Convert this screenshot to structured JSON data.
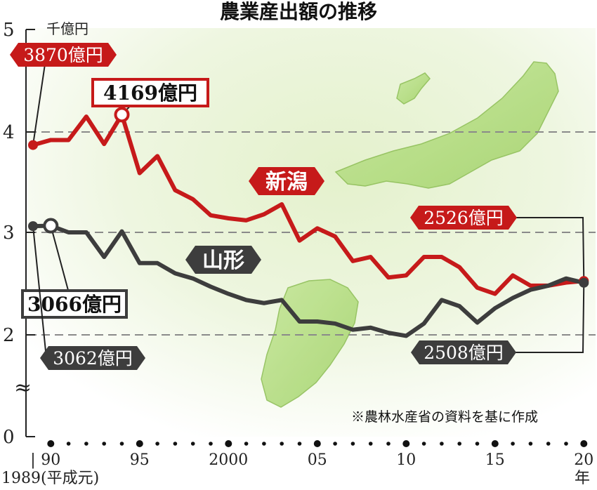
{
  "chart_data": {
    "type": "line",
    "title": "農業産出額の推移",
    "y_unit": "千億円",
    "x_unit": "年",
    "ylim": [
      0,
      5
    ],
    "y_ticks": [
      "0",
      "2",
      "3",
      "4",
      "5"
    ],
    "y_break_symbol": "≈",
    "x_ticks": [
      {
        "x": 1989,
        "label": "|"
      },
      {
        "x": 1990,
        "label": "90"
      },
      {
        "x": 1995,
        "label": "95"
      },
      {
        "x": 2000,
        "label": "2000"
      },
      {
        "x": 2005,
        "label": "05"
      },
      {
        "x": 2010,
        "label": "10"
      },
      {
        "x": 2015,
        "label": "15"
      },
      {
        "x": 2020,
        "label": "20"
      }
    ],
    "x_first_year_label": "1989(平成元)",
    "grid": "dashed horizontal at 2, 3, 4",
    "source_note": "※農林水産省の資料を基に作成",
    "series": [
      {
        "name": "新潟",
        "color": "#c61a1a",
        "x": [
          1989,
          1990,
          1991,
          1992,
          1993,
          1994,
          1995,
          1996,
          1997,
          1998,
          1999,
          2000,
          2001,
          2002,
          2003,
          2004,
          2005,
          2006,
          2007,
          2008,
          2009,
          2010,
          2011,
          2012,
          2013,
          2014,
          2015,
          2016,
          2017,
          2018,
          2019,
          2020
        ],
        "values": [
          3.87,
          3.92,
          3.92,
          4.15,
          3.88,
          4.169,
          3.59,
          3.76,
          3.42,
          3.33,
          3.17,
          3.14,
          3.12,
          3.18,
          3.28,
          2.92,
          3.04,
          2.96,
          2.72,
          2.76,
          2.56,
          2.58,
          2.76,
          2.76,
          2.66,
          2.46,
          2.4,
          2.58,
          2.48,
          2.48,
          2.51,
          2.526
        ]
      },
      {
        "name": "山形",
        "color": "#3d3d3d",
        "x": [
          1989,
          1990,
          1991,
          1992,
          1993,
          1994,
          1995,
          1996,
          1997,
          1998,
          1999,
          2000,
          2001,
          2002,
          2003,
          2004,
          2005,
          2006,
          2007,
          2008,
          2009,
          2010,
          2011,
          2012,
          2013,
          2014,
          2015,
          2016,
          2017,
          2018,
          2019,
          2020
        ],
        "values": [
          3.062,
          3.066,
          3.0,
          3.0,
          2.76,
          3.01,
          2.7,
          2.7,
          2.6,
          2.55,
          2.47,
          2.4,
          2.34,
          2.31,
          2.34,
          2.13,
          2.13,
          2.11,
          2.05,
          2.07,
          2.02,
          1.99,
          2.11,
          2.34,
          2.28,
          2.12,
          2.26,
          2.36,
          2.44,
          2.48,
          2.55,
          2.508
        ]
      }
    ],
    "callouts": [
      {
        "label": "3870億円",
        "series": "新潟",
        "x": 1989,
        "value": 3.87,
        "style": "filled"
      },
      {
        "label": "4169億円",
        "series": "新潟",
        "x": 1994,
        "value": 4.169,
        "style": "boxed"
      },
      {
        "label": "2526億円",
        "series": "新潟",
        "x": 2020,
        "value": 2.526,
        "style": "filled"
      },
      {
        "label": "3066億円",
        "series": "山形",
        "x": 1990,
        "value": 3.066,
        "style": "boxed"
      },
      {
        "label": "3062億円",
        "series": "山形",
        "x": 1989,
        "value": 3.062,
        "style": "filled"
      },
      {
        "label": "2508億円",
        "series": "山形",
        "x": 2020,
        "value": 2.508,
        "style": "filled"
      }
    ],
    "series_tags": [
      {
        "label": "新潟",
        "color": "#c61a1a"
      },
      {
        "label": "山形",
        "color": "#3d3d3d"
      }
    ]
  }
}
